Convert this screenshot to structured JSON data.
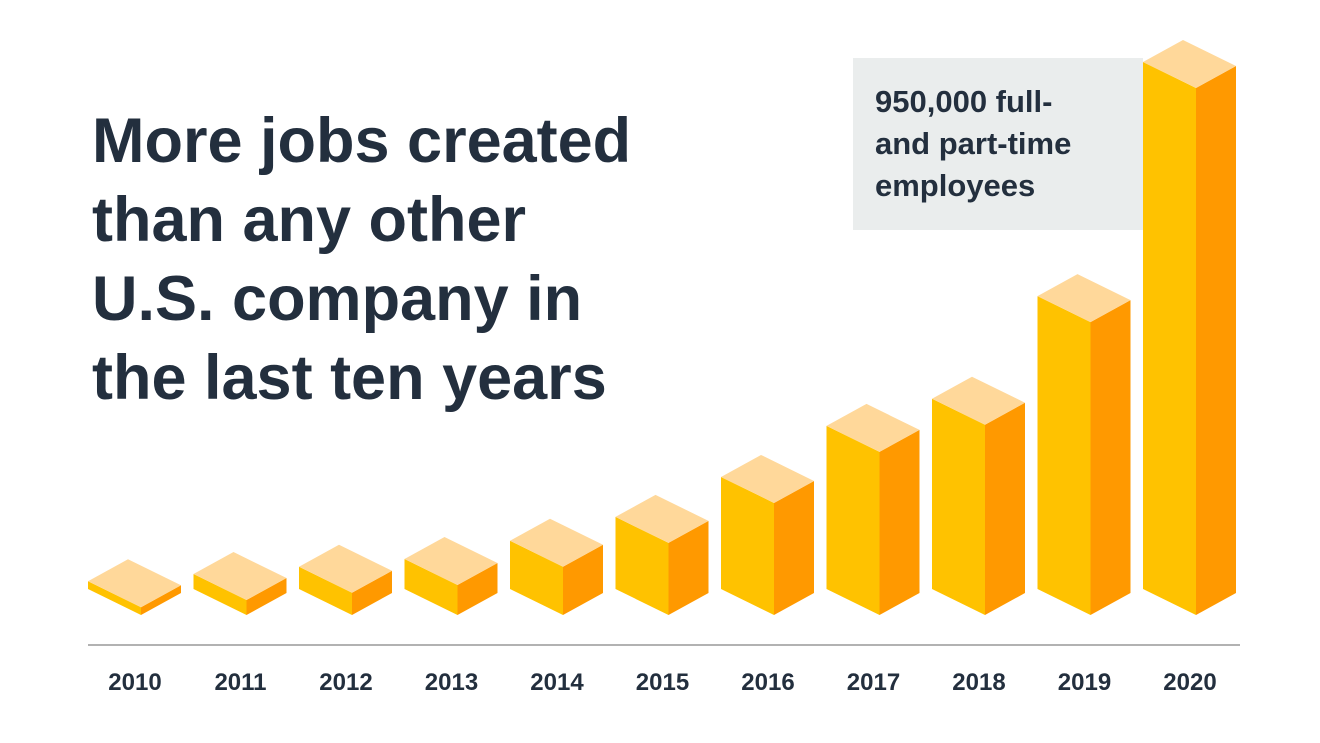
{
  "chart_data": {
    "type": "bar3d",
    "title": [
      "More jobs created",
      "than any other",
      "U.S. company in",
      "the last ten years"
    ],
    "annotation": [
      "950,000 full-",
      "and part-time",
      "employees"
    ],
    "categories": [
      "2010",
      "2011",
      "2012",
      "2013",
      "2014",
      "2015",
      "2016",
      "2017",
      "2018",
      "2019",
      "2020"
    ],
    "values": [
      14000,
      27000,
      40000,
      54000,
      87000,
      130000,
      202000,
      294000,
      343000,
      528000,
      950000
    ],
    "colors": {
      "front": "#ffc200",
      "side": "#ff9900",
      "top": "#ffd89a"
    }
  }
}
